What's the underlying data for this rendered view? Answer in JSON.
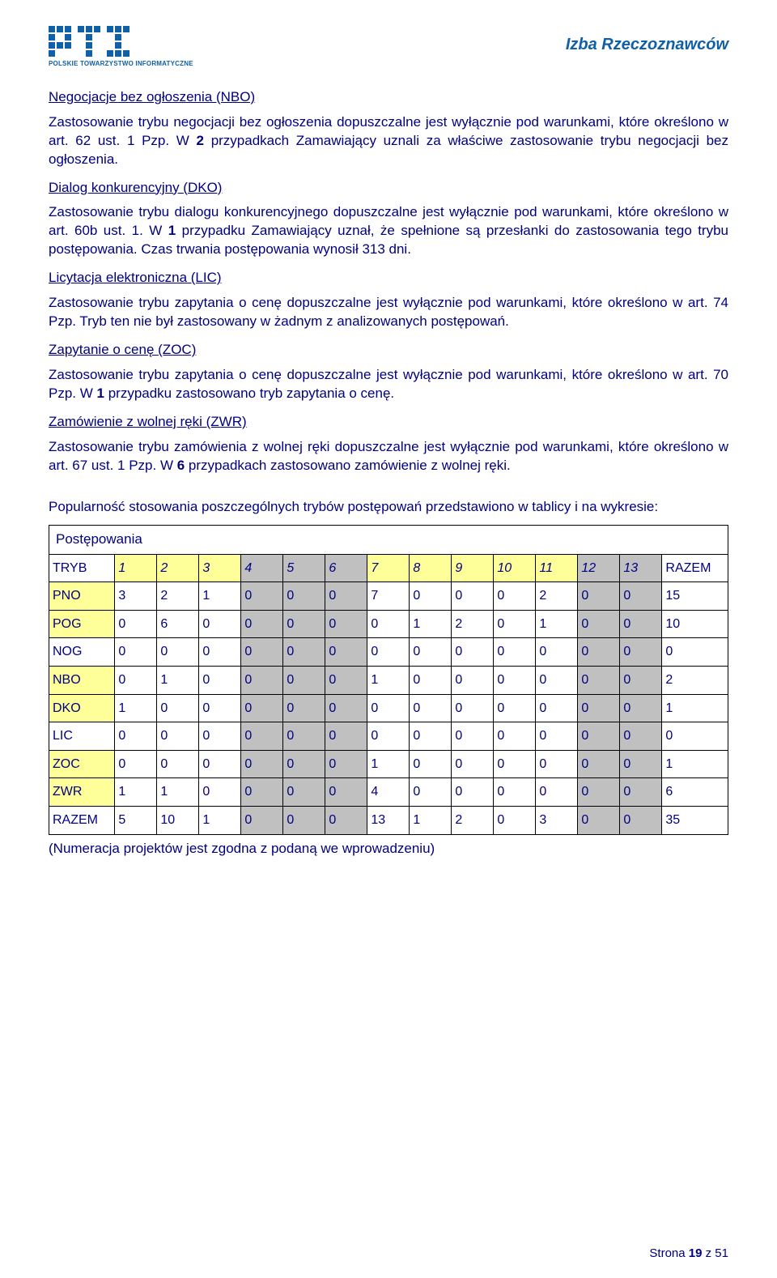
{
  "header": {
    "org_sub": "POLSKIE TOWARZYSTWO INFORMATYCZNE",
    "right": "Izba Rzeczoznawców"
  },
  "sections": [
    {
      "heading": "Negocjacje bez ogłoszenia (NBO)",
      "paras": [
        "Zastosowanie trybu negocjacji bez ogłoszenia dopuszczalne jest wyłącznie pod warunkami, które określono w art. 62 ust. 1 Pzp. W 2 przypadkach Zamawiający uznali za właściwe zastosowanie trybu negocjacji bez ogłoszenia."
      ]
    },
    {
      "heading": "Dialog konkurencyjny (DKO)",
      "paras": [
        "Zastosowanie trybu dialogu konkurencyjnego dopuszczalne jest wyłącznie pod warunkami, które określono w art. 60b ust. 1. W 1 przypadku Zamawiający uznał, że spełnione są przesłanki do zastosowania tego trybu postępowania. Czas trwania postępowania wynosił 313 dni."
      ]
    },
    {
      "heading": "Licytacja elektroniczna (LIC)",
      "paras": [
        "Zastosowanie trybu zapytania o cenę dopuszczalne jest wyłącznie pod warunkami, które określono w art. 74 Pzp. Tryb ten nie był zastosowany w żadnym z analizowanych postępowań."
      ]
    },
    {
      "heading": "Zapytanie o cenę (ZOC)",
      "paras": [
        "Zastosowanie trybu zapytania o cenę dopuszczalne jest wyłącznie pod warunkami, które określono w art. 70 Pzp. W 1 przypadku zastosowano tryb zapytania o cenę."
      ]
    },
    {
      "heading": "Zamówienie z wolnej ręki (ZWR)",
      "paras": [
        "Zastosowanie trybu zamówienia z wolnej ręki dopuszczalne jest wyłącznie pod warunkami, które określono w art. 67 ust. 1 Pzp. W 6 przypadkach zastosowano zamówienie z wolnej ręki."
      ]
    }
  ],
  "intro_table": "Popularność stosowania poszczególnych trybów postępowań przedstawiono w tablicy i na wykresie:",
  "table": {
    "title": "Postępowania",
    "header_label": "TRYB",
    "header_nums": [
      "1",
      "2",
      "3",
      "4",
      "5",
      "6",
      "7",
      "8",
      "9",
      "10",
      "11",
      "12",
      "13"
    ],
    "header_num_styles": [
      "y",
      "y",
      "y",
      "g",
      "g",
      "g",
      "y",
      "y",
      "y",
      "y",
      "y",
      "g",
      "g"
    ],
    "header_sum": "RAZEM",
    "rows": [
      {
        "label": "PNO",
        "label_style": "y",
        "cells": [
          "3",
          "2",
          "1",
          "0",
          "0",
          "0",
          "7",
          "0",
          "0",
          "0",
          "2",
          "0",
          "0"
        ],
        "sum": "15"
      },
      {
        "label": "POG",
        "label_style": "y",
        "cells": [
          "0",
          "6",
          "0",
          "0",
          "0",
          "0",
          "0",
          "1",
          "2",
          "0",
          "1",
          "0",
          "0"
        ],
        "sum": "10"
      },
      {
        "label": "NOG",
        "label_style": "w",
        "cells": [
          "0",
          "0",
          "0",
          "0",
          "0",
          "0",
          "0",
          "0",
          "0",
          "0",
          "0",
          "0",
          "0"
        ],
        "sum": "0"
      },
      {
        "label": "NBO",
        "label_style": "y",
        "cells": [
          "0",
          "1",
          "0",
          "0",
          "0",
          "0",
          "1",
          "0",
          "0",
          "0",
          "0",
          "0",
          "0"
        ],
        "sum": "2"
      },
      {
        "label": "DKO",
        "label_style": "y",
        "cells": [
          "1",
          "0",
          "0",
          "0",
          "0",
          "0",
          "0",
          "0",
          "0",
          "0",
          "0",
          "0",
          "0"
        ],
        "sum": "1"
      },
      {
        "label": "LIC",
        "label_style": "w",
        "cells": [
          "0",
          "0",
          "0",
          "0",
          "0",
          "0",
          "0",
          "0",
          "0",
          "0",
          "0",
          "0",
          "0"
        ],
        "sum": "0"
      },
      {
        "label": "ZOC",
        "label_style": "y",
        "cells": [
          "0",
          "0",
          "0",
          "0",
          "0",
          "0",
          "1",
          "0",
          "0",
          "0",
          "0",
          "0",
          "0"
        ],
        "sum": "1"
      },
      {
        "label": "ZWR",
        "label_style": "y",
        "cells": [
          "1",
          "1",
          "0",
          "0",
          "0",
          "0",
          "4",
          "0",
          "0",
          "0",
          "0",
          "0",
          "0"
        ],
        "sum": "6"
      }
    ],
    "footer_row": {
      "label": "RAZEM",
      "cells": [
        "5",
        "10",
        "1",
        "0",
        "0",
        "0",
        "13",
        "1",
        "2",
        "0",
        "3",
        "0",
        "0"
      ],
      "sum": "35"
    },
    "cell_col_styles": [
      "w",
      "w",
      "w",
      "g",
      "g",
      "g",
      "w",
      "w",
      "w",
      "w",
      "w",
      "g",
      "g"
    ]
  },
  "note": "(Numeracja projektów jest zgodna z podaną we wprowadzeniu)",
  "footer": {
    "prefix": "Strona ",
    "page": "19",
    "of": " z 51"
  },
  "colors": {
    "text": "#000080",
    "accent": "#1060a8",
    "yellow": "#ffff99",
    "gray": "#c0c0c0",
    "white": "#ffffff"
  }
}
